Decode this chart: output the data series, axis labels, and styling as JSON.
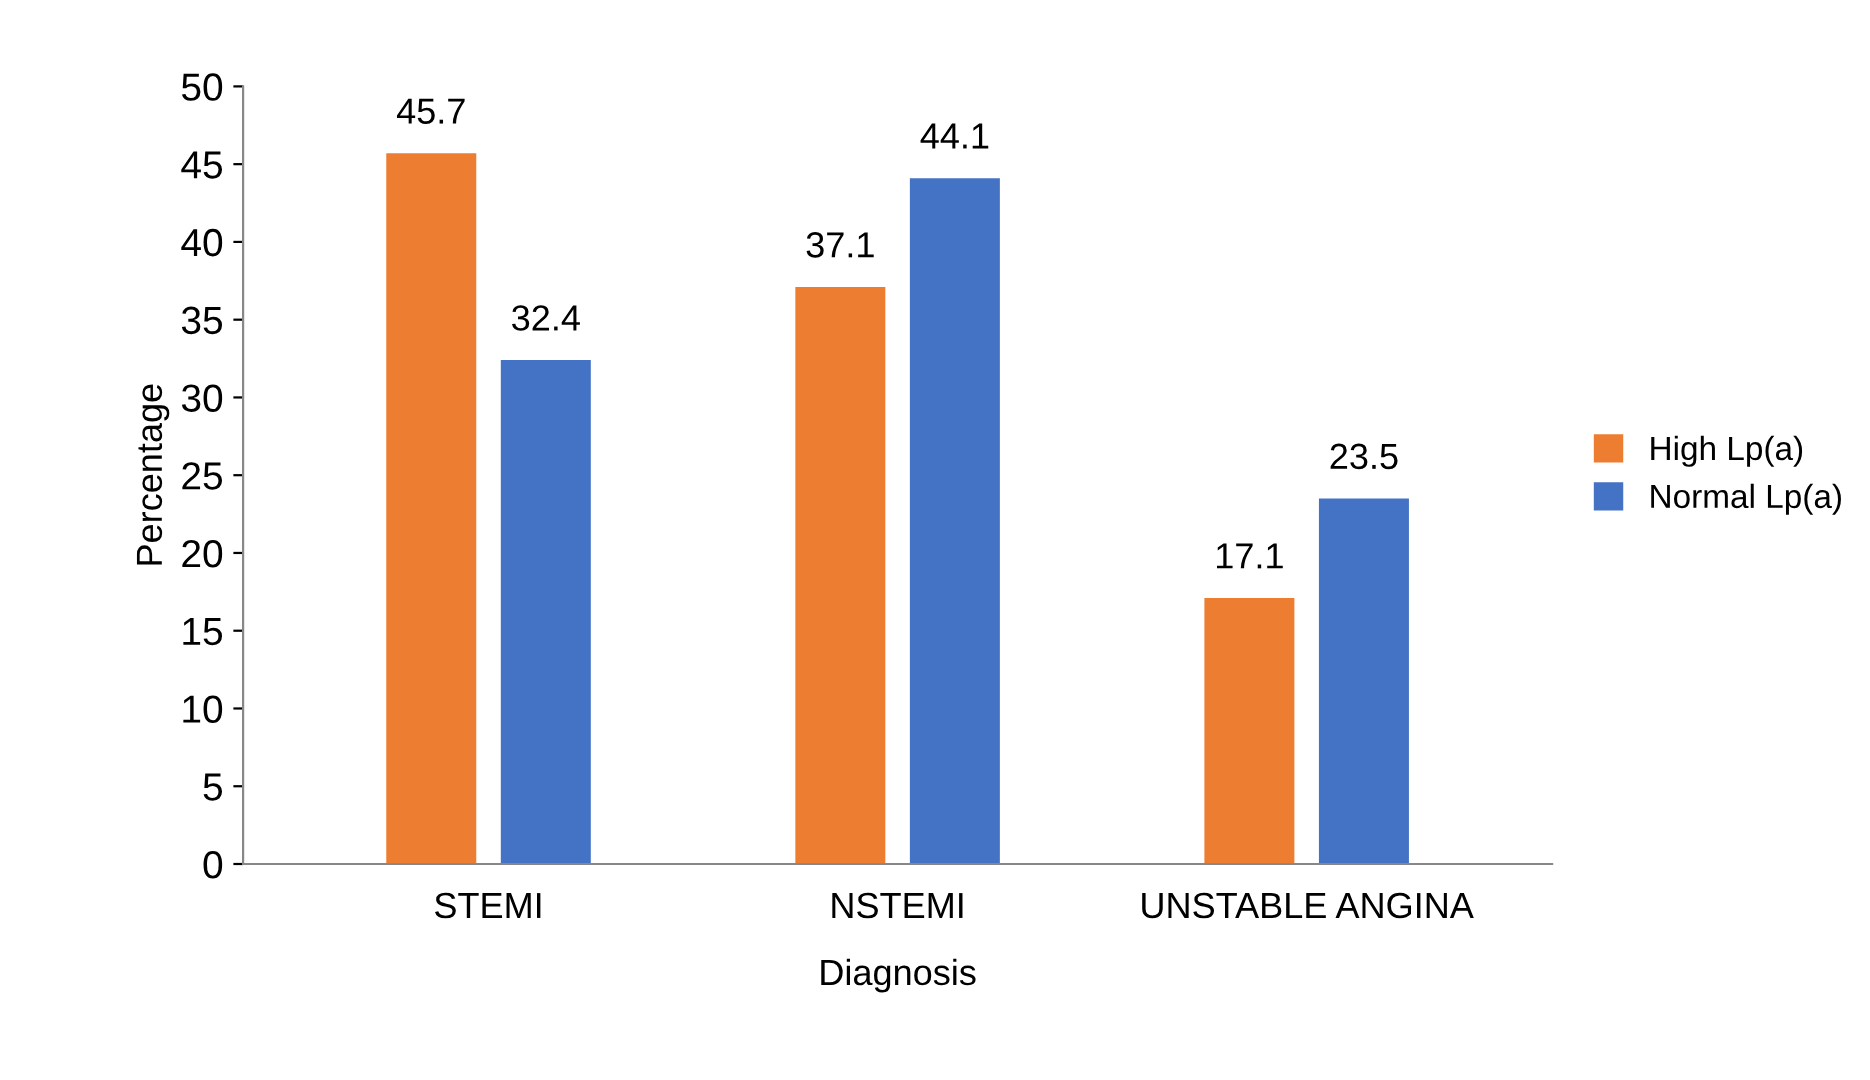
{
  "chart_data": {
    "type": "bar",
    "xlabel": "Diagnosis",
    "ylabel": "Percentage",
    "categories": [
      "STEMI",
      "NSTEMI",
      "UNSTABLE ANGINA"
    ],
    "series": [
      {
        "name": "High Lp(a)",
        "color": "#ed7d31",
        "values": [
          45.7,
          37.1,
          17.1
        ]
      },
      {
        "name": "Normal Lp(a)",
        "color": "#4472c4",
        "values": [
          32.4,
          44.1,
          23.5
        ]
      }
    ],
    "ylim": [
      0,
      50
    ],
    "yticks": [
      0,
      5,
      10,
      15,
      20,
      25,
      30,
      35,
      40,
      45,
      50
    ],
    "grid": false,
    "legend": "right",
    "data_labels": true
  }
}
